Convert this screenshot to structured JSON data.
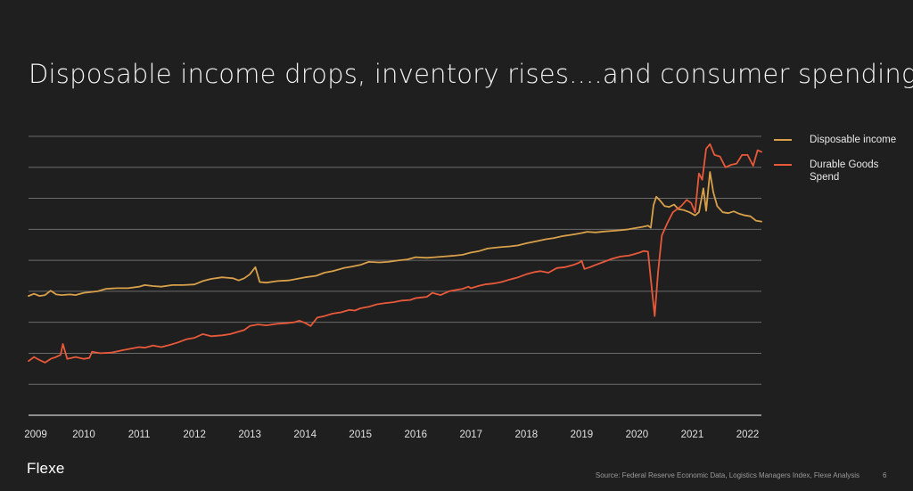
{
  "slide": {
    "title": "Disposable income drops, inventory rises....and consumer spending?",
    "logo": "Flexe",
    "source": "Source: Federal Reserve Economic Data, Logistics Managers Index, Flexe Analysis",
    "page_number": "6"
  },
  "colors": {
    "background": "#1f1f1f",
    "gridline": "#6b6b6b",
    "axis": "#9a9a9a",
    "disposable_income": "#d9a04a",
    "durable_goods": "#e8593a"
  },
  "chart_data": {
    "type": "line",
    "title": "Disposable income drops, inventory rises....and consumer spending?",
    "xlabel": "",
    "ylabel": "",
    "x_tick_labels": [
      "2009",
      "2010",
      "2011",
      "2012",
      "2013",
      "2014",
      "2015",
      "2016",
      "2017",
      "2018",
      "2019",
      "2020",
      "2021",
      "2022"
    ],
    "xlim": [
      2009.0,
      2022.25
    ],
    "ylim": [
      0,
      9
    ],
    "y_gridlines": [
      1,
      2,
      3,
      4,
      5,
      6,
      7,
      8,
      9
    ],
    "y_tick_labels_shown": false,
    "grid": true,
    "legend_position": "right",
    "series": [
      {
        "name": "Disposable income",
        "color_key": "disposable_income",
        "points": [
          [
            2009.0,
            3.85
          ],
          [
            2009.1,
            3.92
          ],
          [
            2009.2,
            3.85
          ],
          [
            2009.3,
            3.88
          ],
          [
            2009.4,
            4.02
          ],
          [
            2009.5,
            3.9
          ],
          [
            2009.6,
            3.88
          ],
          [
            2009.75,
            3.9
          ],
          [
            2009.85,
            3.88
          ],
          [
            2010.0,
            3.95
          ],
          [
            2010.25,
            4.0
          ],
          [
            2010.4,
            4.08
          ],
          [
            2010.6,
            4.1
          ],
          [
            2010.8,
            4.1
          ],
          [
            2011.0,
            4.15
          ],
          [
            2011.1,
            4.2
          ],
          [
            2011.25,
            4.17
          ],
          [
            2011.4,
            4.15
          ],
          [
            2011.6,
            4.2
          ],
          [
            2011.8,
            4.2
          ],
          [
            2012.0,
            4.22
          ],
          [
            2012.15,
            4.33
          ],
          [
            2012.3,
            4.4
          ],
          [
            2012.5,
            4.45
          ],
          [
            2012.7,
            4.42
          ],
          [
            2012.8,
            4.35
          ],
          [
            2012.9,
            4.42
          ],
          [
            2013.0,
            4.55
          ],
          [
            2013.1,
            4.78
          ],
          [
            2013.18,
            4.3
          ],
          [
            2013.3,
            4.28
          ],
          [
            2013.5,
            4.33
          ],
          [
            2013.7,
            4.35
          ],
          [
            2013.85,
            4.4
          ],
          [
            2014.0,
            4.45
          ],
          [
            2014.2,
            4.5
          ],
          [
            2014.35,
            4.6
          ],
          [
            2014.5,
            4.65
          ],
          [
            2014.7,
            4.75
          ],
          [
            2014.85,
            4.8
          ],
          [
            2015.0,
            4.85
          ],
          [
            2015.15,
            4.95
          ],
          [
            2015.35,
            4.93
          ],
          [
            2015.5,
            4.95
          ],
          [
            2015.7,
            5.0
          ],
          [
            2015.85,
            5.03
          ],
          [
            2016.0,
            5.1
          ],
          [
            2016.2,
            5.08
          ],
          [
            2016.35,
            5.1
          ],
          [
            2016.5,
            5.12
          ],
          [
            2016.7,
            5.15
          ],
          [
            2016.85,
            5.18
          ],
          [
            2017.0,
            5.25
          ],
          [
            2017.15,
            5.3
          ],
          [
            2017.3,
            5.38
          ],
          [
            2017.5,
            5.42
          ],
          [
            2017.7,
            5.45
          ],
          [
            2017.85,
            5.48
          ],
          [
            2018.0,
            5.55
          ],
          [
            2018.2,
            5.62
          ],
          [
            2018.35,
            5.68
          ],
          [
            2018.5,
            5.72
          ],
          [
            2018.65,
            5.78
          ],
          [
            2018.8,
            5.82
          ],
          [
            2018.9,
            5.85
          ],
          [
            2019.0,
            5.88
          ],
          [
            2019.1,
            5.92
          ],
          [
            2019.25,
            5.9
          ],
          [
            2019.4,
            5.93
          ],
          [
            2019.55,
            5.95
          ],
          [
            2019.7,
            5.97
          ],
          [
            2019.85,
            6.0
          ],
          [
            2020.0,
            6.05
          ],
          [
            2020.1,
            6.08
          ],
          [
            2020.2,
            6.12
          ],
          [
            2020.25,
            6.05
          ],
          [
            2020.3,
            6.78
          ],
          [
            2020.35,
            7.05
          ],
          [
            2020.42,
            6.92
          ],
          [
            2020.5,
            6.75
          ],
          [
            2020.58,
            6.72
          ],
          [
            2020.67,
            6.8
          ],
          [
            2020.75,
            6.65
          ],
          [
            2020.85,
            6.62
          ],
          [
            2020.95,
            6.55
          ],
          [
            2021.05,
            6.45
          ],
          [
            2021.12,
            6.55
          ],
          [
            2021.2,
            7.32
          ],
          [
            2021.25,
            6.6
          ],
          [
            2021.32,
            7.85
          ],
          [
            2021.38,
            7.2
          ],
          [
            2021.45,
            6.75
          ],
          [
            2021.55,
            6.55
          ],
          [
            2021.65,
            6.52
          ],
          [
            2021.75,
            6.58
          ],
          [
            2021.85,
            6.5
          ],
          [
            2021.95,
            6.45
          ],
          [
            2022.05,
            6.42
          ],
          [
            2022.15,
            6.28
          ],
          [
            2022.25,
            6.25
          ]
        ]
      },
      {
        "name": "Durable Goods Spend",
        "color_key": "durable_goods",
        "points": [
          [
            2009.0,
            1.75
          ],
          [
            2009.1,
            1.88
          ],
          [
            2009.2,
            1.78
          ],
          [
            2009.3,
            1.7
          ],
          [
            2009.4,
            1.82
          ],
          [
            2009.5,
            1.88
          ],
          [
            2009.58,
            1.95
          ],
          [
            2009.62,
            2.3
          ],
          [
            2009.7,
            1.82
          ],
          [
            2009.85,
            1.88
          ],
          [
            2010.0,
            1.82
          ],
          [
            2010.1,
            1.85
          ],
          [
            2010.15,
            2.05
          ],
          [
            2010.3,
            2.0
          ],
          [
            2010.5,
            2.02
          ],
          [
            2010.6,
            2.06
          ],
          [
            2010.7,
            2.1
          ],
          [
            2010.85,
            2.15
          ],
          [
            2011.0,
            2.2
          ],
          [
            2011.1,
            2.18
          ],
          [
            2011.25,
            2.25
          ],
          [
            2011.4,
            2.2
          ],
          [
            2011.55,
            2.27
          ],
          [
            2011.7,
            2.35
          ],
          [
            2011.85,
            2.45
          ],
          [
            2012.0,
            2.5
          ],
          [
            2012.15,
            2.62
          ],
          [
            2012.3,
            2.55
          ],
          [
            2012.5,
            2.58
          ],
          [
            2012.65,
            2.62
          ],
          [
            2012.8,
            2.7
          ],
          [
            2012.9,
            2.75
          ],
          [
            2013.0,
            2.88
          ],
          [
            2013.15,
            2.93
          ],
          [
            2013.3,
            2.9
          ],
          [
            2013.5,
            2.95
          ],
          [
            2013.65,
            2.97
          ],
          [
            2013.8,
            3.0
          ],
          [
            2013.9,
            3.05
          ],
          [
            2014.0,
            2.98
          ],
          [
            2014.1,
            2.88
          ],
          [
            2014.22,
            3.15
          ],
          [
            2014.35,
            3.2
          ],
          [
            2014.5,
            3.28
          ],
          [
            2014.65,
            3.32
          ],
          [
            2014.8,
            3.4
          ],
          [
            2014.9,
            3.38
          ],
          [
            2015.0,
            3.45
          ],
          [
            2015.15,
            3.5
          ],
          [
            2015.3,
            3.58
          ],
          [
            2015.45,
            3.62
          ],
          [
            2015.6,
            3.65
          ],
          [
            2015.75,
            3.7
          ],
          [
            2015.9,
            3.72
          ],
          [
            2016.0,
            3.78
          ],
          [
            2016.1,
            3.8
          ],
          [
            2016.2,
            3.82
          ],
          [
            2016.3,
            3.95
          ],
          [
            2016.45,
            3.88
          ],
          [
            2016.6,
            4.0
          ],
          [
            2016.75,
            4.05
          ],
          [
            2016.85,
            4.08
          ],
          [
            2016.95,
            4.15
          ],
          [
            2017.0,
            4.1
          ],
          [
            2017.15,
            4.18
          ],
          [
            2017.25,
            4.22
          ],
          [
            2017.4,
            4.25
          ],
          [
            2017.55,
            4.3
          ],
          [
            2017.7,
            4.38
          ],
          [
            2017.85,
            4.45
          ],
          [
            2018.0,
            4.55
          ],
          [
            2018.15,
            4.62
          ],
          [
            2018.25,
            4.65
          ],
          [
            2018.4,
            4.6
          ],
          [
            2018.55,
            4.75
          ],
          [
            2018.7,
            4.78
          ],
          [
            2018.85,
            4.85
          ],
          [
            2018.95,
            4.92
          ],
          [
            2019.0,
            4.98
          ],
          [
            2019.05,
            4.72
          ],
          [
            2019.15,
            4.78
          ],
          [
            2019.25,
            4.85
          ],
          [
            2019.4,
            4.95
          ],
          [
            2019.55,
            5.05
          ],
          [
            2019.7,
            5.12
          ],
          [
            2019.85,
            5.15
          ],
          [
            2019.95,
            5.2
          ],
          [
            2020.05,
            5.25
          ],
          [
            2020.12,
            5.3
          ],
          [
            2020.2,
            5.28
          ],
          [
            2020.25,
            4.4
          ],
          [
            2020.32,
            3.2
          ],
          [
            2020.38,
            4.6
          ],
          [
            2020.45,
            5.8
          ],
          [
            2020.55,
            6.2
          ],
          [
            2020.65,
            6.55
          ],
          [
            2020.8,
            6.75
          ],
          [
            2020.9,
            6.95
          ],
          [
            2020.98,
            6.85
          ],
          [
            2021.05,
            6.55
          ],
          [
            2021.12,
            7.8
          ],
          [
            2021.18,
            7.6
          ],
          [
            2021.25,
            8.6
          ],
          [
            2021.32,
            8.75
          ],
          [
            2021.4,
            8.4
          ],
          [
            2021.5,
            8.35
          ],
          [
            2021.6,
            8.0
          ],
          [
            2021.7,
            8.08
          ],
          [
            2021.8,
            8.12
          ],
          [
            2021.9,
            8.4
          ],
          [
            2022.0,
            8.4
          ],
          [
            2022.1,
            8.05
          ],
          [
            2022.18,
            8.55
          ],
          [
            2022.25,
            8.5
          ]
        ]
      }
    ]
  }
}
